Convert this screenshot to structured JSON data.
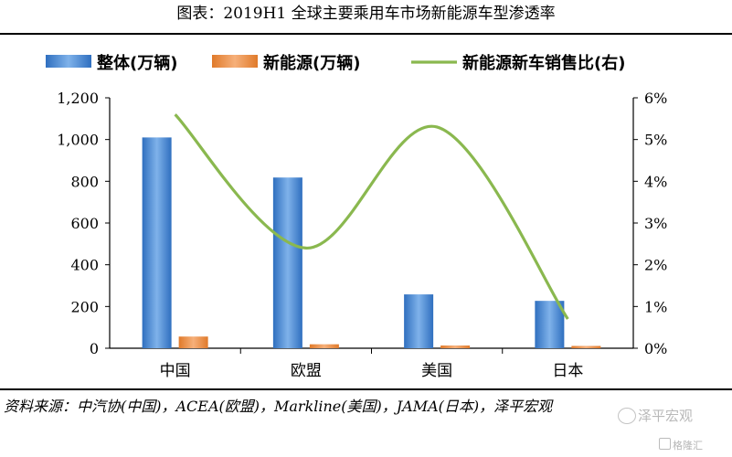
{
  "chart_data": {
    "type": "bar",
    "title": "图表：2019H1 全球主要乘用车市场新能源车型渗透率",
    "categories": [
      "中国",
      "欧盟",
      "美国",
      "日本"
    ],
    "series": [
      {
        "name": "整体(万辆)",
        "kind": "bar",
        "axis": "left",
        "color": "#3d7fd0",
        "values": [
          1010,
          818,
          258,
          227
        ]
      },
      {
        "name": "新能源(万辆)",
        "kind": "bar",
        "axis": "left",
        "color": "#ec8a3c",
        "values": [
          56,
          19,
          13,
          11
        ]
      },
      {
        "name": "新能源新车销售比(右)",
        "kind": "line",
        "axis": "right",
        "color": "#8ab84f",
        "values": [
          5.6,
          2.4,
          5.3,
          0.7
        ]
      }
    ],
    "y_left": {
      "min": 0,
      "max": 1200,
      "ticks": [
        "0",
        "200",
        "400",
        "600",
        "800",
        "1,000",
        "1,200"
      ]
    },
    "y_right": {
      "min": 0,
      "max": 6,
      "ticks": [
        "0%",
        "1%",
        "2%",
        "3%",
        "4%",
        "5%",
        "6%"
      ]
    },
    "grid": false,
    "legend_position": "top"
  },
  "source_note": "资料来源：中汽协(中国)，ACEA(欧盟)，Markline(美国)，JAMA(日本)，泽平宏观",
  "watermark": {
    "text": "泽平宏观",
    "secondary": "格隆汇"
  }
}
